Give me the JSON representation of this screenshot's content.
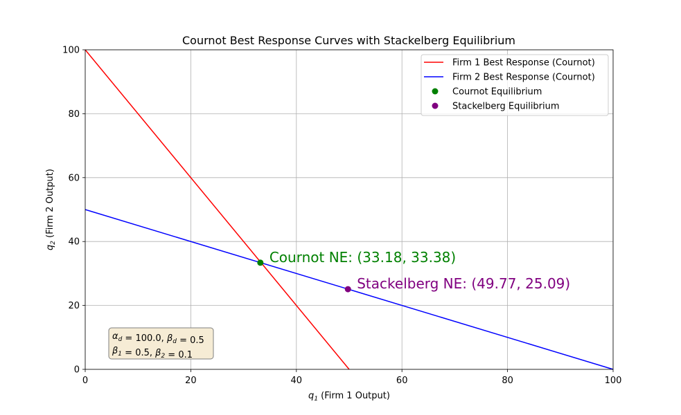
{
  "chart_data": {
    "type": "line",
    "title": "Cournot Best Response Curves with Stackelberg Equilibrium",
    "xlabel": {
      "var": "q",
      "sub": "1",
      "rest": " (Firm 1 Output)"
    },
    "ylabel": {
      "var": "q",
      "sub": "2",
      "rest": " (Firm 2 Output)"
    },
    "xlim": [
      0,
      100
    ],
    "ylim": [
      0,
      100
    ],
    "xticks": [
      0,
      20,
      40,
      60,
      80,
      100
    ],
    "yticks": [
      0,
      20,
      40,
      60,
      80,
      100
    ],
    "grid": true,
    "legend_position": "top-right",
    "series": [
      {
        "name": "Firm 1 Best Response (Cournot)",
        "kind": "line",
        "color": "#ff0000",
        "x": [
          0,
          50
        ],
        "y": [
          100,
          0
        ]
      },
      {
        "name": "Firm 2 Best Response (Cournot)",
        "kind": "line",
        "color": "#0000ff",
        "x": [
          0,
          100
        ],
        "y": [
          50,
          0
        ]
      },
      {
        "name": "Cournot Equilibrium",
        "kind": "point",
        "color": "#008000",
        "x": [
          33.18
        ],
        "y": [
          33.38
        ]
      },
      {
        "name": "Stackelberg Equilibrium",
        "kind": "point",
        "color": "#800080",
        "x": [
          49.77
        ],
        "y": [
          25.09
        ]
      }
    ],
    "annotations": [
      {
        "text": "Cournot NE: (33.18, 33.38)",
        "x": 33.18,
        "y": 33.38,
        "color": "#008000"
      },
      {
        "text": "Stackelberg NE: (49.77, 25.09)",
        "x": 49.77,
        "y": 25.09,
        "color": "#800080"
      }
    ],
    "params_box": {
      "line1": [
        {
          "t": "α",
          "i": true
        },
        {
          "t": "d",
          "sub": true
        },
        {
          "t": " = 100.0, "
        },
        {
          "t": "β",
          "i": true
        },
        {
          "t": "d",
          "sub": true
        },
        {
          "t": " = 0.5"
        }
      ],
      "line2": [
        {
          "t": "β",
          "i": true
        },
        {
          "t": "1",
          "sub": true
        },
        {
          "t": " = 0.5, "
        },
        {
          "t": "β",
          "i": true
        },
        {
          "t": "2",
          "sub": true
        },
        {
          "t": " = 0.1"
        }
      ],
      "background": "#f6ecd5",
      "border": "#7f7f7f"
    }
  }
}
